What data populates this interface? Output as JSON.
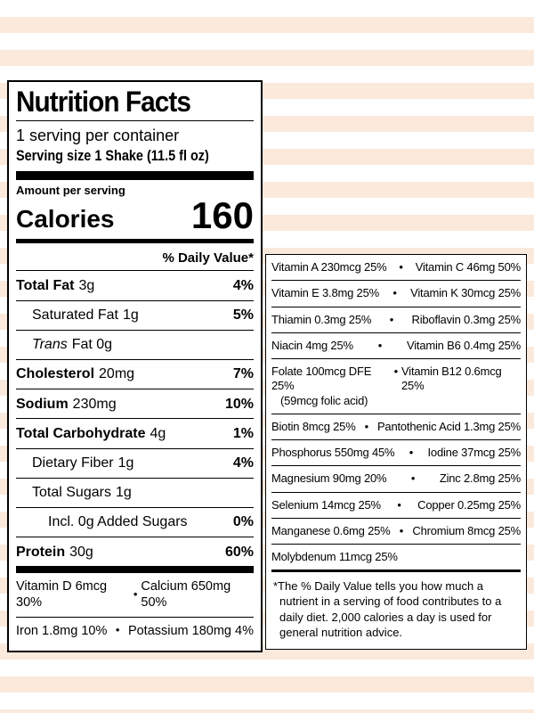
{
  "colors": {
    "stripe": "#fbe9dc",
    "panel_bg": "#ffffff",
    "text": "#000000",
    "border": "#000000"
  },
  "ui": {
    "bullet": "•"
  },
  "label": {
    "title": "Nutrition Facts",
    "servings_per_container": "1 serving per container",
    "serving_size": "Serving size 1 Shake (11.5 fl oz)",
    "amount_per_serving": "Amount per serving",
    "calories_label": "Calories",
    "calories_value": "160",
    "daily_value_header": "% Daily Value*",
    "rows": [
      {
        "name": "Total Fat",
        "amount": "3g",
        "dv": "4%"
      },
      {
        "name": "Saturated Fat",
        "amount": "1g",
        "dv": "5%"
      },
      {
        "name_italic": "Trans",
        "rest": "Fat 0g",
        "dv": ""
      },
      {
        "name": "Cholesterol",
        "amount": "20mg",
        "dv": "7%"
      },
      {
        "name": "Sodium",
        "amount": "230mg",
        "dv": "10%"
      },
      {
        "name": "Total Carbohydrate",
        "amount": "4g",
        "dv": "1%"
      },
      {
        "name": "Dietary Fiber",
        "amount": "1g",
        "dv": "4%"
      },
      {
        "name": "Total Sugars",
        "amount": "1g",
        "dv": ""
      },
      {
        "name": "Incl. 0g Added Sugars",
        "amount": "",
        "dv": "0%"
      },
      {
        "name": "Protein",
        "amount": "30g",
        "dv": "60%"
      }
    ],
    "micros": [
      {
        "left": "Vitamin D 6mcg 30%",
        "right": "Calcium 650mg 50%"
      },
      {
        "left": "Iron 1.8mg 10%",
        "right": "Potassium 180mg 4%"
      }
    ]
  },
  "panel2": {
    "rows": [
      {
        "left": "Vitamin A 230mcg 25%",
        "right": "Vitamin C 46mg 50%"
      },
      {
        "left": "Vitamin E 3.8mg 25%",
        "right": "Vitamin K 30mcg 25%"
      },
      {
        "left": "Thiamin 0.3mg 25%",
        "right": "Riboflavin 0.3mg 25%"
      },
      {
        "left": "Niacin 4mg 25%",
        "right": "Vitamin B6 0.4mg 25%"
      },
      {
        "left": "Folate 100mcg DFE 25%",
        "left2": "(59mcg folic acid)",
        "right": "Vitamin B12 0.6mcg 25%"
      },
      {
        "left": "Biotin 8mcg 25%",
        "right": "Pantothenic Acid 1.3mg 25%"
      },
      {
        "left": "Phosphorus 550mg 45%",
        "right": "Iodine 37mcg 25%"
      },
      {
        "left": "Magnesium 90mg 20%",
        "right": "Zinc 2.8mg 25%"
      },
      {
        "left": "Selenium 14mcg 25%",
        "right": "Copper 0.25mg 25%"
      },
      {
        "left": "Manganese 0.6mg 25%",
        "right": "Chromium 8mcg 25%"
      },
      {
        "left": "Molybdenum 11mcg 25%",
        "right": ""
      }
    ],
    "footnote": "*The % Daily Value tells you how much a nutrient in a serving of food contributes to a daily diet. 2,000 calories a day is used for general nutrition advice."
  }
}
